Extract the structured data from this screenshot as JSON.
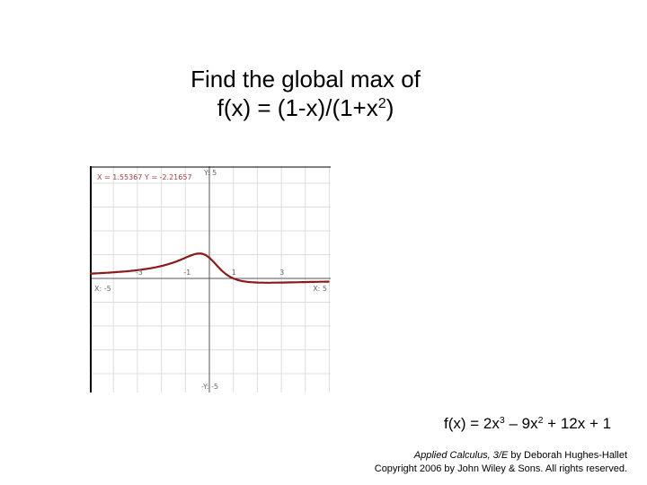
{
  "title": {
    "line1": "Find the global max of",
    "line2": [
      "f(x) = (1-x)/(1+x",
      "2",
      ")"
    ]
  },
  "graph": {
    "cursor": "X = 1.55367  Y = -2.21657",
    "y_max_label": "Y: 5",
    "x_min_label": "X: -5",
    "x_max_label": "X: 5",
    "y_min_label": "-Y: -5",
    "x_tick_labels": [
      "-3",
      "-1",
      "1",
      "3"
    ]
  },
  "formula": [
    "f(x) = 2x",
    "3",
    " – 9x",
    "2",
    " + 12x + 1"
  ],
  "credit": {
    "book": "Applied Calculus, 3/E",
    "author": " by Deborah Hughes-Hallet",
    "copyright": "Copyright 2006 by John Wiley & Sons.  All rights reserved."
  }
}
